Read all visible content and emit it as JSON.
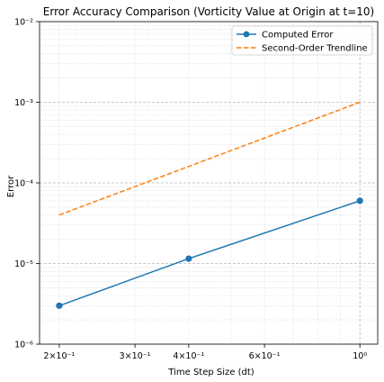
{
  "chart_data": {
    "type": "line",
    "title": "Error Accuracy Comparison (Vorticity Value at Origin at t=10)",
    "xlabel": "Time Step Size (dt)",
    "ylabel": "Error",
    "xscale": "log",
    "yscale": "log",
    "xlim": [
      0.18,
      1.1
    ],
    "ylim": [
      1e-06,
      0.01
    ],
    "grid": true,
    "legend_position": "top-right",
    "x_ticks": [
      {
        "value": 0.2,
        "label": "2×10⁻¹"
      },
      {
        "value": 0.3,
        "label": "3×10⁻¹"
      },
      {
        "value": 0.4,
        "label": "4×10⁻¹"
      },
      {
        "value": 0.6,
        "label": "6×10⁻¹"
      },
      {
        "value": 1.0,
        "label": "10⁰"
      }
    ],
    "y_ticks": [
      {
        "value": 1e-06,
        "label": "10⁻⁶"
      },
      {
        "value": 1e-05,
        "label": "10⁻⁵"
      },
      {
        "value": 0.0001,
        "label": "10⁻⁴"
      },
      {
        "value": 0.001,
        "label": "10⁻³"
      },
      {
        "value": 0.01,
        "label": "10⁻²"
      }
    ],
    "series": [
      {
        "name": "Computed Error",
        "style": "solid",
        "marker": "circle",
        "color": "#1f77b4",
        "x": [
          0.2,
          0.4,
          1.0
        ],
        "y": [
          3e-06,
          1.15e-05,
          6e-05
        ]
      },
      {
        "name": "Second-Order Trendline",
        "style": "dashed",
        "marker": "none",
        "color": "#ff7f0e",
        "x": [
          0.2,
          1.0
        ],
        "y": [
          4e-05,
          0.001
        ]
      }
    ]
  }
}
